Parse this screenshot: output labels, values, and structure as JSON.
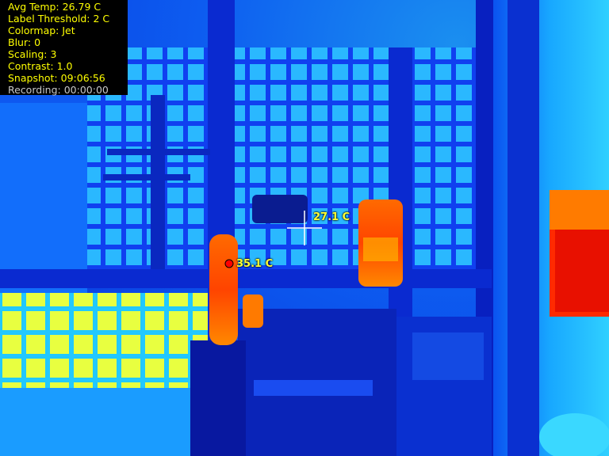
{
  "hud": {
    "avg_temp": "Avg Temp: 26.79 C",
    "label_threshold": "Label Threshold: 2 C",
    "colormap": "Colormap: Jet",
    "blur": "Blur: 0",
    "scaling": "Scaling: 3",
    "contrast": "Contrast: 1.0",
    "snapshot": "Snapshot: 09:06:56",
    "recording": "Recording: 00:00:00"
  },
  "markers": {
    "crosshair_temp": "27.1 C",
    "hotspot_temp": "35.1 C"
  },
  "colors": {
    "hud_text": "#ffff00",
    "recording_text": "#c8c8c8",
    "hotspot_marker": "#ff0000",
    "crosshair": "#ffffff"
  }
}
